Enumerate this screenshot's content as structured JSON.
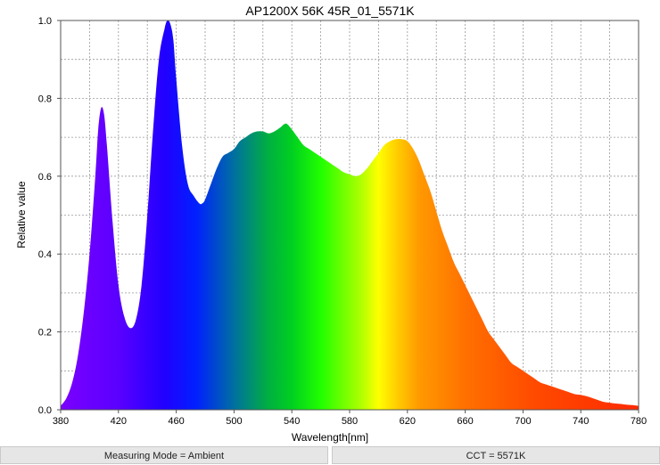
{
  "chart_data": {
    "type": "area",
    "title": "AP1200X 56K 45R_01_5571K",
    "xlabel": "Wavelength[nm]",
    "ylabel": "Relative value",
    "xlim": [
      380,
      780
    ],
    "ylim": [
      0,
      1.0
    ],
    "x_ticks": [
      "380",
      "420",
      "460",
      "500",
      "540",
      "580",
      "620",
      "660",
      "700",
      "740",
      "780"
    ],
    "y_ticks": [
      "0.0",
      "0.2",
      "0.4",
      "0.6",
      "0.8",
      "1.0"
    ],
    "grid": true,
    "fill": "visible-spectrum gradient",
    "x": [
      380,
      384,
      388,
      392,
      396,
      400,
      404,
      406,
      408,
      410,
      412,
      416,
      420,
      424,
      428,
      432,
      436,
      440,
      444,
      448,
      452,
      454,
      456,
      458,
      460,
      464,
      468,
      472,
      476,
      478,
      480,
      484,
      488,
      492,
      496,
      500,
      504,
      508,
      512,
      516,
      520,
      524,
      528,
      532,
      536,
      540,
      544,
      548,
      552,
      556,
      560,
      564,
      568,
      572,
      576,
      580,
      584,
      588,
      592,
      596,
      600,
      604,
      608,
      612,
      616,
      620,
      624,
      628,
      632,
      636,
      640,
      644,
      648,
      652,
      656,
      660,
      664,
      668,
      672,
      676,
      680,
      684,
      688,
      692,
      696,
      700,
      704,
      708,
      712,
      716,
      720,
      724,
      728,
      732,
      736,
      740,
      744,
      748,
      752,
      756,
      760,
      764,
      768,
      772,
      776,
      780
    ],
    "values": [
      0.01,
      0.03,
      0.07,
      0.14,
      0.25,
      0.4,
      0.6,
      0.72,
      0.775,
      0.76,
      0.68,
      0.48,
      0.32,
      0.24,
      0.21,
      0.23,
      0.32,
      0.5,
      0.72,
      0.9,
      0.98,
      1.0,
      0.99,
      0.95,
      0.85,
      0.68,
      0.58,
      0.55,
      0.53,
      0.53,
      0.54,
      0.58,
      0.62,
      0.65,
      0.66,
      0.67,
      0.69,
      0.7,
      0.71,
      0.715,
      0.715,
      0.71,
      0.715,
      0.725,
      0.735,
      0.72,
      0.7,
      0.68,
      0.67,
      0.66,
      0.65,
      0.64,
      0.63,
      0.62,
      0.61,
      0.605,
      0.6,
      0.605,
      0.62,
      0.64,
      0.66,
      0.68,
      0.69,
      0.695,
      0.695,
      0.69,
      0.67,
      0.64,
      0.6,
      0.56,
      0.51,
      0.46,
      0.42,
      0.38,
      0.35,
      0.32,
      0.29,
      0.26,
      0.23,
      0.2,
      0.18,
      0.16,
      0.14,
      0.12,
      0.11,
      0.1,
      0.09,
      0.08,
      0.07,
      0.065,
      0.06,
      0.055,
      0.05,
      0.045,
      0.04,
      0.038,
      0.035,
      0.03,
      0.025,
      0.02,
      0.018,
      0.016,
      0.015,
      0.013,
      0.012,
      0.01
    ]
  },
  "footer": {
    "measuring_mode": "Measuring Mode = Ambient",
    "cct": "CCT = 5571K"
  }
}
